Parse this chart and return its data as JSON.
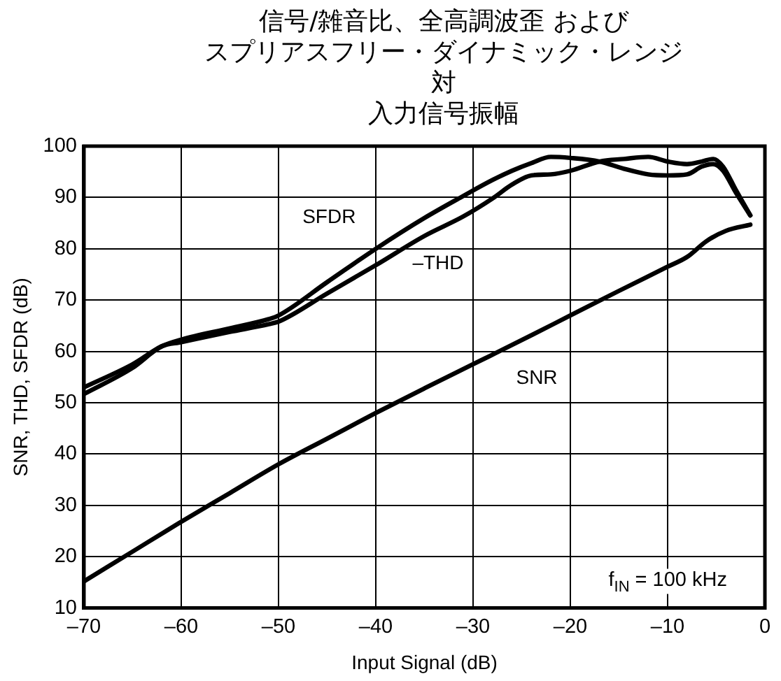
{
  "chart_data": {
    "type": "line",
    "title": "信号/雑音比、全高調波歪 およびスプリアスフリー・ダイナミック・レンジ対入力信号振幅",
    "xlabel": "Input Signal (dB)",
    "ylabel": "SNR, THD, SFDR (dB)",
    "xlim": [
      -70,
      0
    ],
    "xticks": [
      {
        "value": -70,
        "label": "–70"
      },
      {
        "value": -60,
        "label": "–60"
      },
      {
        "value": -50,
        "label": "–50"
      },
      {
        "value": -40,
        "label": "–40"
      },
      {
        "value": -30,
        "label": "–30"
      },
      {
        "value": -20,
        "label": "–20"
      },
      {
        "value": -10,
        "label": "–10"
      },
      0
    ],
    "ylim": [
      10,
      100
    ],
    "yticks": [
      10,
      20,
      30,
      40,
      50,
      60,
      70,
      80,
      90,
      100
    ],
    "series": [
      {
        "name": "SFDR",
        "color": "#000000",
        "x": [
          -70,
          -65,
          -62,
          -60,
          -55,
          -51,
          -50,
          -45,
          -40,
          -35,
          -31,
          -28,
          -26,
          -24,
          -22,
          -20,
          -17,
          -14.5,
          -12,
          -10,
          -8,
          -6.5,
          -5.3,
          -4.3,
          -3,
          -1.5
        ],
        "values": [
          53,
          57.5,
          61,
          62.3,
          64.5,
          66.3,
          67,
          73.5,
          80,
          86,
          90.3,
          93.4,
          95.2,
          96.7,
          97.9,
          97.7,
          97,
          95.6,
          94.5,
          94.3,
          94.5,
          96,
          96.5,
          95.2,
          91,
          86.5
        ]
      },
      {
        "name": "–THD",
        "color": "#000000",
        "x": [
          -70,
          -65,
          -62,
          -60,
          -55,
          -51,
          -50,
          -45,
          -40,
          -35,
          -31,
          -28,
          -26,
          -24,
          -22,
          -20,
          -17,
          -14.5,
          -12,
          -10,
          -8,
          -6.5,
          -5.3,
          -4.3,
          -3,
          -1.5
        ],
        "values": [
          51.7,
          56.8,
          61,
          61.8,
          63.8,
          65.3,
          65.8,
          71.3,
          76.8,
          82.5,
          86.3,
          89.8,
          92.5,
          94.3,
          94.5,
          95.2,
          97,
          97.5,
          97.9,
          97,
          96.5,
          97,
          97.5,
          96,
          91.5,
          86.5
        ]
      },
      {
        "name": "SNR",
        "color": "#000000",
        "x": [
          -70,
          -65,
          -60,
          -55,
          -50,
          -45,
          -40,
          -35,
          -30,
          -25,
          -20,
          -15,
          -10,
          -8,
          -6,
          -4,
          -1.5
        ],
        "values": [
          15.2,
          21,
          26.8,
          32.4,
          38,
          43,
          48,
          52.8,
          57.5,
          62.2,
          67,
          71.8,
          76.5,
          78.4,
          81.5,
          83.5,
          84.7
        ]
      }
    ],
    "annotations": [
      "f$_{IN}$ = 100 kHz"
    ],
    "grid": true,
    "legend": false,
    "marker": "none"
  }
}
